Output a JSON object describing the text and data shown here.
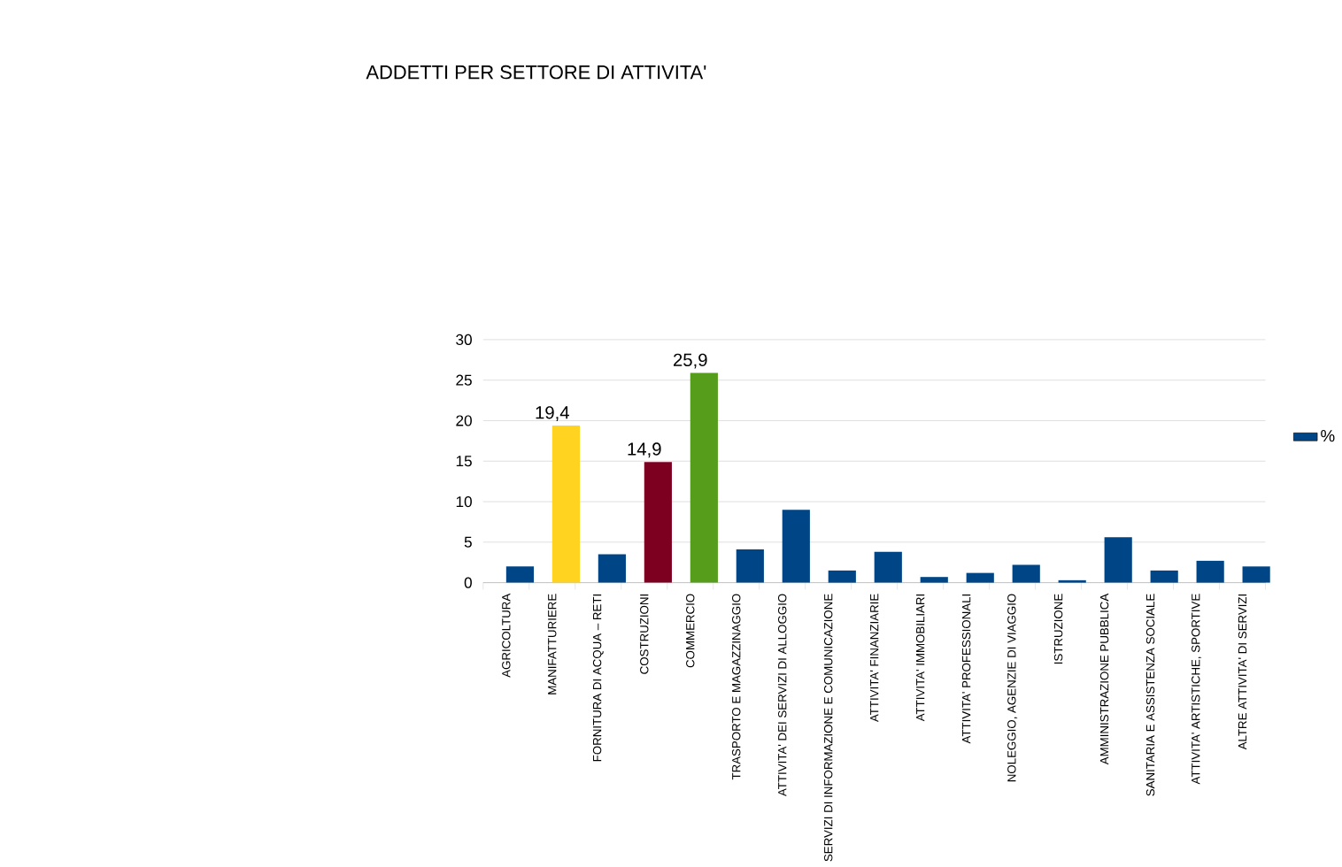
{
  "chart_data": {
    "type": "bar",
    "title": "ADDETTI PER SETTORE DI ATTIVITA'",
    "categories": [
      "AGRICOLTURA",
      "MANIFATTURIERE",
      "FORNITURA DI ACQUA – RETI",
      "COSTRUZIONI",
      "COMMERCIO",
      "TRASPORTO E MAGAZZINAGGIO",
      "ATTIVITA' DEI SERVIZI DI ALLOGGIO",
      "SERVIZI DI INFORMAZIONE E COMUNICAZIONE",
      "ATTIVITA' FINANZIARIE",
      "ATTIVITA' IMMOBILIARI",
      "ATTIVITA' PROFESSIONALI",
      "NOLEGGIO, AGENZIE DI VIAGGIO",
      "ISTRUZIONE",
      "AMMINISTRAZIONE PUBBLICA",
      "SANITARIA E ASSISTENZA SOCIALE",
      "ATTIVITA' ARTISTICHE, SPORTIVE",
      "ALTRE ATTIVITA' DI SERVIZI"
    ],
    "series": [
      {
        "name": "%",
        "color": "#004586",
        "colors": [
          "#004586",
          "#ffd320",
          "#004586",
          "#7e0021",
          "#579d1c",
          "#004586",
          "#004586",
          "#004586",
          "#004586",
          "#004586",
          "#004586",
          "#004586",
          "#004586",
          "#004586",
          "#004586",
          "#004586",
          "#004586"
        ],
        "values": [
          2.0,
          19.4,
          3.5,
          14.9,
          25.9,
          4.1,
          9.0,
          1.5,
          3.8,
          0.7,
          1.2,
          2.2,
          0.3,
          5.6,
          1.5,
          2.7,
          2.0
        ],
        "value_labels": [
          null,
          "19,4",
          null,
          "14,9",
          "25,9",
          null,
          null,
          null,
          null,
          null,
          null,
          null,
          null,
          null,
          null,
          null,
          null
        ]
      }
    ],
    "ylim": [
      0,
      30
    ],
    "yticks": [
      0,
      5,
      10,
      15,
      20,
      25,
      30
    ],
    "grid": "y",
    "legend": "right"
  }
}
